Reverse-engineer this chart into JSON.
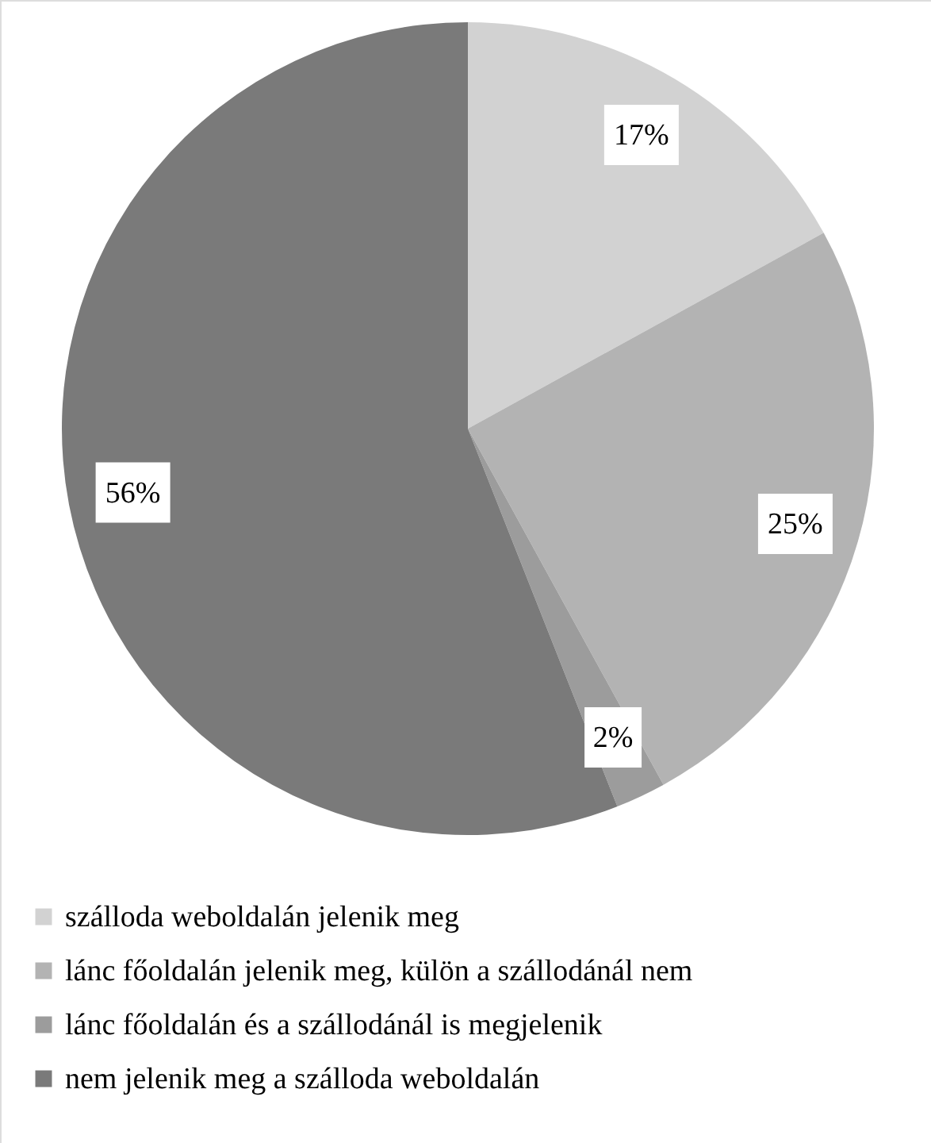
{
  "chart_data": {
    "type": "pie",
    "categories": [
      "szálloda weboldalán jelenik meg",
      "lánc főoldalán jelenik meg, külön a szállodánál nem",
      "lánc főoldalán és a szállodánál is megjelenik",
      "nem jelenik meg a szálloda weboldalán"
    ],
    "values": [
      17,
      25,
      2,
      56
    ],
    "colors": [
      "#d2d2d2",
      "#b3b3b3",
      "#9c9c9c",
      "#7a7a7a"
    ],
    "value_labels": [
      "17%",
      "25%",
      "2%",
      "56%"
    ],
    "legend": "bottom"
  }
}
